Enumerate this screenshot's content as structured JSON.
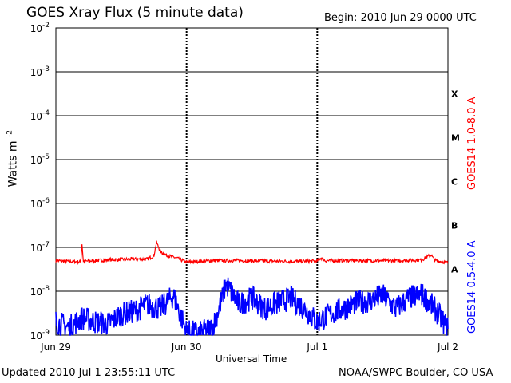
{
  "header": {
    "title": "GOES Xray Flux (5 minute data)",
    "begin": "Begin:  2010 Jun 29 0000 UTC"
  },
  "footer": {
    "updated": "Updated 2010 Jul  1 23:55:11 UTC",
    "credit": "NOAA/SWPC Boulder, CO USA"
  },
  "chart_data": {
    "type": "line",
    "title": "GOES Xray Flux (5 minute data)",
    "xlabel": "Universal Time",
    "ylabel": "Watts m",
    "ylabel_sup": "-2",
    "yscale": "log",
    "ylim": [
      1e-09,
      0.01
    ],
    "xlim_days": [
      0,
      3
    ],
    "x_ticks": [
      "Jun 29",
      "Jun 30",
      "Jul 1",
      "Jul 2"
    ],
    "y_ticks": [
      {
        "base": "10",
        "exp": "-9"
      },
      {
        "base": "10",
        "exp": "-8"
      },
      {
        "base": "10",
        "exp": "-7"
      },
      {
        "base": "10",
        "exp": "-6"
      },
      {
        "base": "10",
        "exp": "-5"
      },
      {
        "base": "10",
        "exp": "-4"
      },
      {
        "base": "10",
        "exp": "-3"
      },
      {
        "base": "10",
        "exp": "-2"
      }
    ],
    "flare_classes": [
      "A",
      "B",
      "C",
      "M",
      "X"
    ],
    "grid": true,
    "colors": {
      "long": "#ff0000",
      "short": "#0000ff"
    },
    "series": [
      {
        "name": "GOES14 1.0-8.0 A",
        "color": "#ff0000",
        "points": [
          [
            0.0,
            5e-08
          ],
          [
            0.1,
            4.8e-08
          ],
          [
            0.19,
            4.7e-08
          ],
          [
            0.2,
            1.2e-07
          ],
          [
            0.21,
            4.8e-08
          ],
          [
            0.4,
            5.2e-08
          ],
          [
            0.6,
            5.4e-08
          ],
          [
            0.7,
            5.4e-08
          ],
          [
            0.75,
            6.5e-08
          ],
          [
            0.77,
            1.3e-07
          ],
          [
            0.8,
            8e-08
          ],
          [
            0.85,
            6.5e-08
          ],
          [
            0.92,
            5.8e-08
          ],
          [
            1.0,
            4.6e-08
          ],
          [
            1.1,
            4.8e-08
          ],
          [
            1.2,
            5e-08
          ],
          [
            1.4,
            5e-08
          ],
          [
            1.6,
            4.9e-08
          ],
          [
            1.8,
            4.8e-08
          ],
          [
            2.0,
            4.9e-08
          ],
          [
            2.03,
            5.8e-08
          ],
          [
            2.06,
            5e-08
          ],
          [
            2.3,
            5e-08
          ],
          [
            2.6,
            5e-08
          ],
          [
            2.8,
            5.2e-08
          ],
          [
            2.87,
            6.8e-08
          ],
          [
            2.9,
            5e-08
          ],
          [
            3.0,
            4.5e-08
          ]
        ]
      },
      {
        "name": "GOES14 0.5-4.0 A",
        "color": "#0000ff",
        "points": [
          [
            0.0,
            2e-09
          ],
          [
            0.1,
            1.5e-09
          ],
          [
            0.2,
            2.5e-09
          ],
          [
            0.3,
            2e-09
          ],
          [
            0.4,
            1.8e-09
          ],
          [
            0.5,
            3e-09
          ],
          [
            0.6,
            3.5e-09
          ],
          [
            0.7,
            5e-09
          ],
          [
            0.8,
            4e-09
          ],
          [
            0.9,
            8e-09
          ],
          [
            1.0,
            1.2e-09
          ],
          [
            1.1,
            1.1e-09
          ],
          [
            1.2,
            1.5e-09
          ],
          [
            1.28,
            8e-09
          ],
          [
            1.3,
            1.5e-08
          ],
          [
            1.4,
            5e-09
          ],
          [
            1.5,
            7e-09
          ],
          [
            1.6,
            4e-09
          ],
          [
            1.7,
            5.5e-09
          ],
          [
            1.8,
            7e-09
          ],
          [
            1.9,
            4e-09
          ],
          [
            2.0,
            2e-09
          ],
          [
            2.1,
            3e-09
          ],
          [
            2.2,
            4e-09
          ],
          [
            2.3,
            5.5e-09
          ],
          [
            2.4,
            6e-09
          ],
          [
            2.5,
            8e-09
          ],
          [
            2.6,
            4e-09
          ],
          [
            2.7,
            7e-09
          ],
          [
            2.8,
            8.5e-09
          ],
          [
            2.9,
            4e-09
          ],
          [
            3.0,
            1.4e-09
          ]
        ]
      }
    ]
  }
}
